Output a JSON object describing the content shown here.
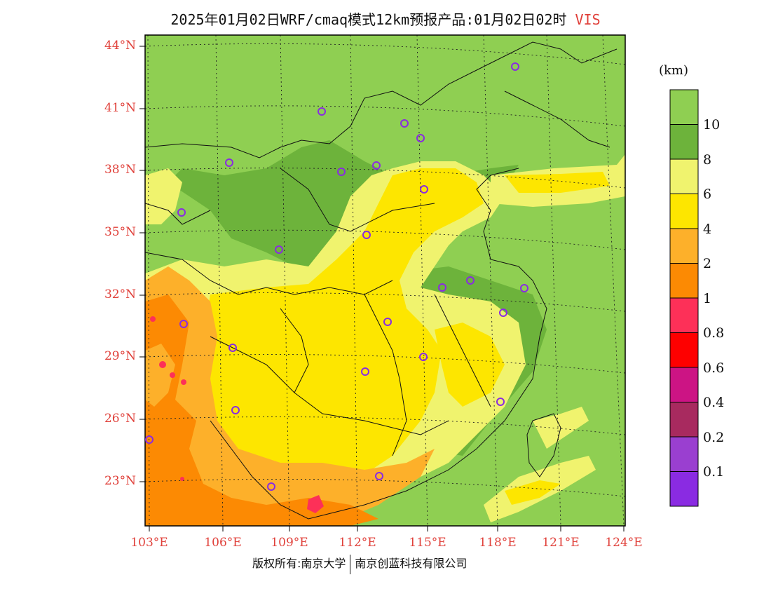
{
  "title": "2025年01月02日WRF/cmaq模式12km预报产品:01月02日02时",
  "variable": "VIS",
  "unit_label": "(km)",
  "lat_labels": [
    "44°N",
    "41°N",
    "38°N",
    "35°N",
    "32°N",
    "29°N",
    "26°N",
    "23°N"
  ],
  "lon_labels": [
    "103°E",
    "106°E",
    "109°E",
    "112°E",
    "115°E",
    "118°E",
    "121°E",
    "124°E"
  ],
  "colorbar": {
    "bins": [
      {
        "color": "#8fcf52"
      },
      {
        "color": "#6db33b"
      },
      {
        "color": "#f0f36e"
      },
      {
        "color": "#fde600"
      },
      {
        "color": "#fdb02a"
      },
      {
        "color": "#fc8a03"
      },
      {
        "color": "#fd3058"
      },
      {
        "color": "#fe0000"
      },
      {
        "color": "#cc1484"
      },
      {
        "color": "#a82a5f"
      },
      {
        "color": "#9a3fd0"
      },
      {
        "color": "#8a2be2"
      }
    ],
    "labels": [
      "10",
      "8",
      "6",
      "4",
      "2",
      "1",
      "0.8",
      "0.6",
      "0.4",
      "0.2",
      "0.1"
    ]
  },
  "footer": {
    "left": "版权所有:南京大学",
    "right": "南京创蓝科技有限公司"
  }
}
